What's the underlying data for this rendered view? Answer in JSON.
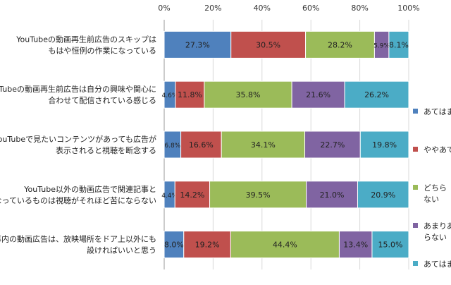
{
  "chart_data": {
    "type": "bar",
    "orientation": "horizontal",
    "stacked": true,
    "title": "",
    "xlabel": "",
    "ylabel": "",
    "xlim": [
      0,
      100
    ],
    "x_ticks": [
      "0%",
      "20%",
      "40%",
      "60%",
      "80%",
      "100%"
    ],
    "grid": true,
    "legend_position": "right",
    "categories": [
      [
        "YouTubeの動画再生前広告のスキップは",
        "もはや恒例の作業になっている"
      ],
      [
        "YouTubeの動画再生前広告は自分の興味や関心に",
        "合わせて配信されている感じる"
      ],
      [
        "YouTubeで見たいコンテンツがあっても広告が",
        "表示されると視聴を断念する"
      ],
      [
        "YouTube以外の動画広告で関連記事と",
        "なっているものは視聴がそれほど苦にならない"
      ],
      [
        "記事内の動画広告は、放映場所をドア上以外にも",
        "設ければいいと思う"
      ]
    ],
    "series": [
      {
        "name": "あてはまる",
        "color": "#4f81bd",
        "values": [
          27.3,
          4.6,
          6.8,
          4.4,
          8.0
        ],
        "labels": [
          "27.3%",
          "4.6%",
          "6.8%",
          "4.4%",
          "8.0%"
        ]
      },
      {
        "name": "ややあてはまる",
        "color": "#c0504d",
        "values": [
          30.5,
          11.8,
          16.6,
          14.2,
          19.2
        ],
        "labels": [
          "30.5%",
          "11.8%",
          "16.6%",
          "14.2%",
          "19.2%"
        ]
      },
      {
        "name": "どちらともいえない",
        "color": "#9bbb59",
        "values": [
          28.2,
          35.8,
          34.1,
          39.5,
          44.4
        ],
        "labels": [
          "28.2%",
          "35.8%",
          "34.1%",
          "39.5%",
          "44.4%"
        ]
      },
      {
        "name": "あまりあてはまらない",
        "color": "#8064a2",
        "values": [
          5.9,
          21.6,
          22.7,
          21.0,
          13.4
        ],
        "labels": [
          "5.9%",
          "21.6%",
          "22.7%",
          "21.0%",
          "13.4%"
        ]
      },
      {
        "name": "あてはまらない",
        "color": "#4bacc6",
        "values": [
          8.1,
          26.2,
          19.8,
          20.9,
          15.0
        ],
        "labels": [
          "8.1%",
          "26.2%",
          "19.8%",
          "20.9%",
          "15.0%"
        ]
      }
    ],
    "legend_display_lines": [
      [
        "あてはま"
      ],
      [
        "ややあて"
      ],
      [
        "どちら",
        "ない"
      ],
      [
        "あまりあ",
        "らない"
      ],
      [
        "あてはま"
      ]
    ]
  }
}
